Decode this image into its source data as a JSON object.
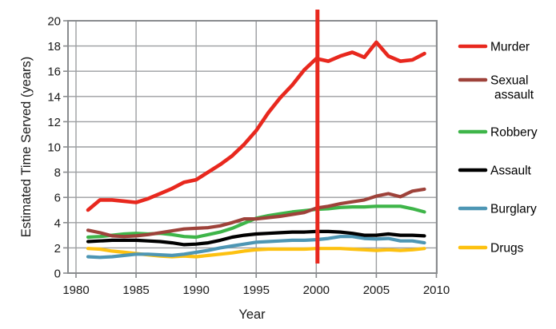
{
  "chart_data": {
    "type": "line",
    "title": "",
    "xlabel": "Year",
    "ylabel": "Estimated Time Served (years)",
    "x_ticks": [
      1980,
      1985,
      1990,
      1995,
      2000,
      2005,
      2010
    ],
    "y_ticks": [
      0,
      2,
      4,
      6,
      8,
      10,
      12,
      14,
      16,
      18,
      20
    ],
    "xlim": [
      1979.3,
      2010.1
    ],
    "ylim": [
      0,
      20
    ],
    "grid": true,
    "legend_position": "right",
    "x": [
      1981,
      1982,
      1983,
      1984,
      1985,
      1986,
      1987,
      1988,
      1989,
      1990,
      1991,
      1992,
      1993,
      1994,
      1995,
      1996,
      1997,
      1998,
      1999,
      2000,
      2001,
      2002,
      2003,
      2004,
      2005,
      2006,
      2007,
      2008,
      2009
    ],
    "series": [
      {
        "name": "Drugs",
        "legend_label": "Drugs",
        "color": "#fdc110",
        "values": [
          1.95,
          1.9,
          1.75,
          1.65,
          1.55,
          1.45,
          1.35,
          1.3,
          1.35,
          1.3,
          1.4,
          1.5,
          1.6,
          1.75,
          1.85,
          1.9,
          1.9,
          1.9,
          1.9,
          1.95,
          1.95,
          1.95,
          1.9,
          1.85,
          1.8,
          1.85,
          1.8,
          1.85,
          1.95
        ]
      },
      {
        "name": "Burglary",
        "legend_label": "Burglary",
        "color": "#4d96b4",
        "values": [
          1.3,
          1.25,
          1.3,
          1.4,
          1.5,
          1.5,
          1.45,
          1.4,
          1.5,
          1.65,
          1.8,
          2.0,
          2.15,
          2.3,
          2.45,
          2.5,
          2.55,
          2.6,
          2.6,
          2.65,
          2.75,
          2.9,
          2.9,
          2.75,
          2.7,
          2.75,
          2.55,
          2.55,
          2.4
        ]
      },
      {
        "name": "Assault",
        "legend_label": "Assault",
        "color": "#000000",
        "values": [
          2.5,
          2.55,
          2.6,
          2.6,
          2.6,
          2.55,
          2.5,
          2.4,
          2.25,
          2.3,
          2.4,
          2.6,
          2.85,
          3.0,
          3.1,
          3.15,
          3.2,
          3.25,
          3.25,
          3.3,
          3.3,
          3.25,
          3.15,
          3.0,
          3.0,
          3.1,
          3.0,
          3.0,
          2.95
        ]
      },
      {
        "name": "Robbery",
        "legend_label": "Robbery",
        "color": "#3eb549",
        "values": [
          2.85,
          2.9,
          3.0,
          3.1,
          3.15,
          3.1,
          3.15,
          3.05,
          2.9,
          2.85,
          3.05,
          3.25,
          3.55,
          3.95,
          4.35,
          4.55,
          4.7,
          4.85,
          4.95,
          5.05,
          5.1,
          5.2,
          5.25,
          5.25,
          5.3,
          5.3,
          5.3,
          5.1,
          4.85
        ]
      },
      {
        "name": "Sexual assault",
        "legend_label": "Sexual\nassault",
        "color": "#9e423a",
        "values": [
          3.4,
          3.2,
          2.95,
          2.9,
          2.95,
          3.05,
          3.2,
          3.35,
          3.5,
          3.55,
          3.6,
          3.75,
          4.0,
          4.3,
          4.3,
          4.4,
          4.5,
          4.65,
          4.8,
          5.15,
          5.3,
          5.5,
          5.65,
          5.8,
          6.1,
          6.3,
          6.05,
          6.5,
          6.65
        ]
      },
      {
        "name": "Murder",
        "legend_label": "Murder",
        "color": "#e8281e",
        "values": [
          5.0,
          5.8,
          5.8,
          5.7,
          5.6,
          5.9,
          6.3,
          6.7,
          7.2,
          7.4,
          8.0,
          8.6,
          9.3,
          10.2,
          11.3,
          12.7,
          13.9,
          14.9,
          16.1,
          17.0,
          16.8,
          17.2,
          17.5,
          17.1,
          18.3,
          17.2,
          16.8,
          16.9,
          17.4
        ]
      }
    ],
    "legend_order": [
      "Murder",
      "Sexual assault",
      "Robbery",
      "Assault",
      "Burglary",
      "Drugs"
    ],
    "reference_line": {
      "x": 2000.1,
      "color": "#e8281e"
    },
    "grid_color": "#9c9ea1",
    "axis_box_color": "#898b8e"
  }
}
